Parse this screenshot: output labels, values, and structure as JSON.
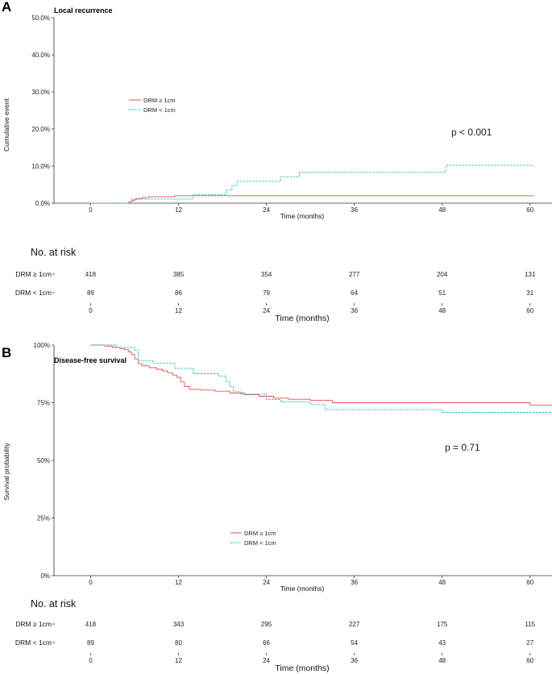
{
  "colors": {
    "series_a": "#e8504f",
    "series_b": "#19b8bf",
    "axis": "#333333",
    "text": "#111111"
  },
  "chart_data": [
    {
      "panel": "A",
      "type": "line",
      "step": true,
      "title": "Local recurrence",
      "xlabel": "Time (months)",
      "ylabel": "Cumulative event",
      "xlim": [
        -5,
        63
      ],
      "ylim": [
        0,
        50
      ],
      "xticks": [
        0,
        12,
        24,
        36,
        48,
        60
      ],
      "xtick_labels": [
        "0",
        "12",
        "24",
        "36",
        "48",
        "60"
      ],
      "yticks": [
        0,
        10,
        20,
        30,
        40,
        50
      ],
      "ytick_labels": [
        "0.0%",
        "10.0%",
        "20.0%",
        "30.0%",
        "40.0%",
        "50.0%"
      ],
      "pvalue": "p < 0.001",
      "legend": [
        "DRM ≥ 1cm",
        "DRM < 1cm"
      ],
      "series": [
        {
          "name": "DRM ≥ 1cm",
          "style": "solid",
          "x": [
            0,
            5.2,
            5.5,
            5.8,
            6.0,
            6.3,
            7.0,
            8.0,
            11.5,
            60.5
          ],
          "y": [
            0,
            0.25,
            0.5,
            0.75,
            1.0,
            1.25,
            1.5,
            1.75,
            2.0,
            2.0
          ]
        },
        {
          "name": "DRM < 1cm",
          "style": "dashed",
          "x": [
            0,
            5.5,
            7.0,
            14.0,
            18.5,
            19.3,
            20.0,
            26.0,
            28.5,
            48.5,
            60.5
          ],
          "y": [
            0,
            1.1,
            1.1,
            2.3,
            3.5,
            4.7,
            5.9,
            7.1,
            8.3,
            10.2,
            10.2
          ]
        }
      ],
      "risk_table": {
        "title": "No. at risk",
        "xlabel": "Time (months)",
        "rows": [
          {
            "label": "DRM ≥ 1cm",
            "values": [
              "418",
              "385",
              "354",
              "277",
              "204",
              "131"
            ]
          },
          {
            "label": "DRM < 1cm",
            "values": [
              "89",
              "86",
              "79",
              "64",
              "51",
              "31"
            ]
          }
        ]
      }
    },
    {
      "panel": "B",
      "type": "line",
      "step": true,
      "title": "Disease-free survival",
      "xlabel": "Time (months)",
      "ylabel": "Survival probability",
      "xlim": [
        -5,
        63
      ],
      "ylim": [
        0,
        100
      ],
      "xticks": [
        0,
        12,
        24,
        36,
        48,
        60
      ],
      "xtick_labels": [
        "0",
        "12",
        "24",
        "36",
        "48",
        "60"
      ],
      "yticks": [
        0,
        25,
        50,
        75,
        100
      ],
      "ytick_labels": [
        "0%",
        "25%",
        "50%",
        "75%",
        "100%"
      ],
      "pvalue": "p = 0.71",
      "legend": [
        "DRM ≥ 1cm",
        "DRM < 1cm"
      ],
      "series": [
        {
          "name": "DRM ≥ 1cm",
          "style": "solid",
          "x": [
            0,
            2.0,
            3.0,
            4.0,
            4.6,
            5.2,
            5.6,
            6.0,
            6.5,
            7.0,
            8.0,
            9.0,
            9.8,
            10.5,
            11.2,
            11.8,
            12.3,
            12.8,
            13.5,
            15.0,
            17.0,
            19.0,
            21.0,
            23.0,
            25.0,
            27.0,
            30.0,
            33.0,
            60.0,
            63.0
          ],
          "y": [
            100,
            99.5,
            99,
            98.5,
            98,
            97,
            96,
            94,
            92,
            91,
            90.2,
            89.5,
            88.8,
            88,
            87,
            86,
            84,
            82,
            80.8,
            80.5,
            80,
            79.2,
            78.5,
            77.8,
            77,
            76.5,
            76,
            75,
            74,
            74
          ]
        },
        {
          "name": "DRM < 1cm",
          "style": "dashed",
          "x": [
            0,
            3.5,
            6.0,
            6.5,
            8.5,
            11.5,
            14.0,
            17.5,
            18.5,
            19.0,
            19.5,
            20.5,
            24.0,
            26.0,
            30.0,
            32.0,
            48.0,
            63.0
          ],
          "y": [
            100,
            98.9,
            97.8,
            93.3,
            92.2,
            89.9,
            87.6,
            86.5,
            84.2,
            82.0,
            79.8,
            78.7,
            76.4,
            75.3,
            74.2,
            72.0,
            70.8,
            70.8
          ]
        }
      ],
      "risk_table": {
        "title": "No. at risk",
        "xlabel": "Time (months)",
        "rows": [
          {
            "label": "DRM ≥ 1cm",
            "values": [
              "418",
              "343",
              "295",
              "227",
              "175",
              "115"
            ]
          },
          {
            "label": "DRM < 1cm",
            "values": [
              "89",
              "80",
              "66",
              "54",
              "43",
              "27"
            ]
          }
        ]
      }
    }
  ]
}
